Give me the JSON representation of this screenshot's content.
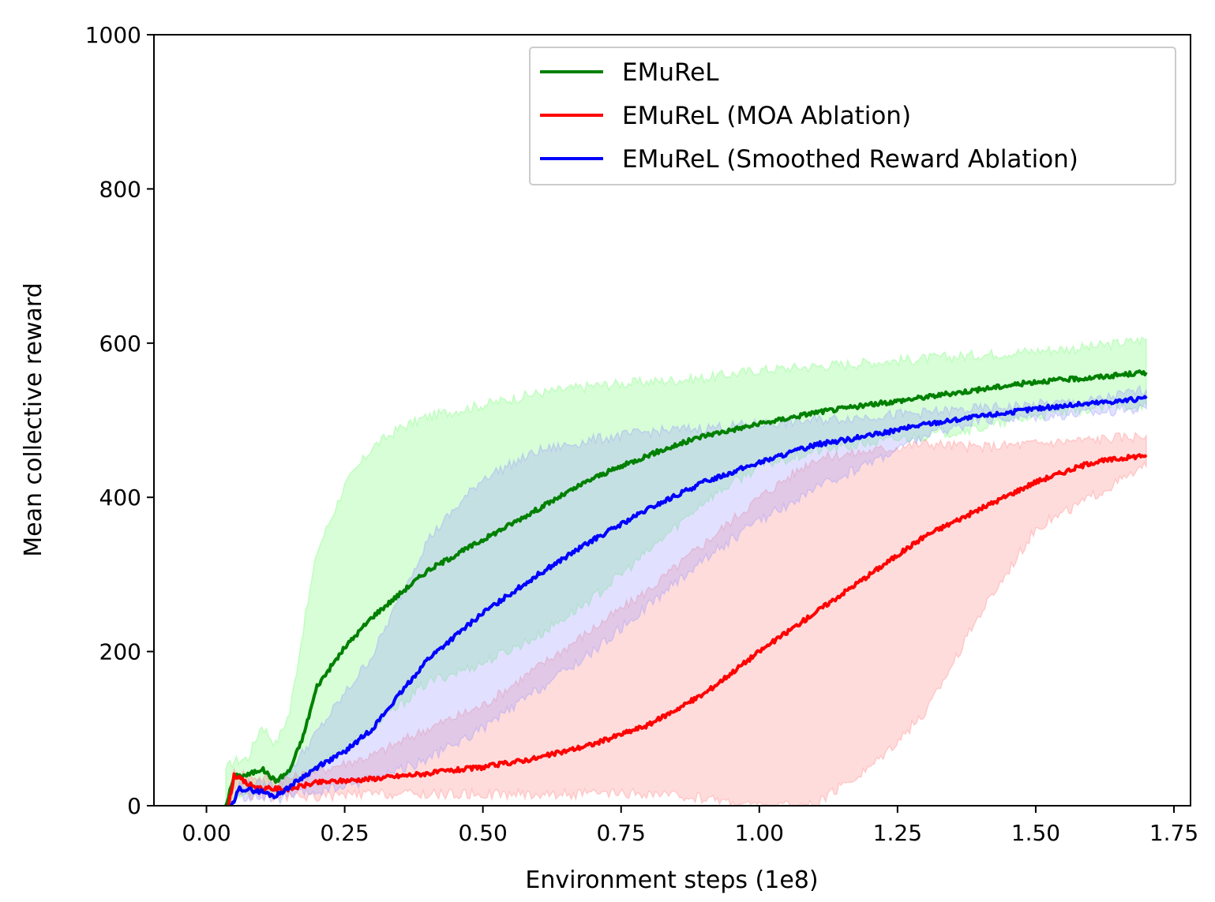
{
  "chart_data": {
    "type": "line",
    "title": "",
    "xlabel": "Environment steps (1e8)",
    "ylabel": "Mean collective reward",
    "xlim": [
      -0.095,
      1.78
    ],
    "ylim": [
      0,
      1000
    ],
    "xticks": [
      0.0,
      0.25,
      0.5,
      0.75,
      1.0,
      1.25,
      1.5,
      1.75
    ],
    "xtick_labels": [
      "0.00",
      "0.25",
      "0.50",
      "0.75",
      "1.00",
      "1.25",
      "1.50",
      "1.75"
    ],
    "yticks": [
      0,
      200,
      400,
      600,
      800,
      1000
    ],
    "ytick_labels": [
      "0",
      "200",
      "400",
      "600",
      "800",
      "1000"
    ],
    "grid": false,
    "legend_position": "top-right",
    "series": [
      {
        "name": "EMuReL",
        "color": "#008000",
        "band_color": "#7CFC7C",
        "x": [
          0.035,
          0.05,
          0.075,
          0.1,
          0.125,
          0.15,
          0.175,
          0.2,
          0.25,
          0.3,
          0.35,
          0.4,
          0.5,
          0.6,
          0.7,
          0.8,
          0.9,
          1.0,
          1.1,
          1.2,
          1.3,
          1.4,
          1.5,
          1.6,
          1.7
        ],
        "y": [
          0,
          38,
          40,
          48,
          32,
          45,
          90,
          155,
          205,
          245,
          275,
          305,
          345,
          385,
          425,
          455,
          480,
          495,
          510,
          520,
          530,
          540,
          550,
          555,
          562
        ],
        "upper": [
          48,
          58,
          62,
          105,
          80,
          120,
          230,
          330,
          415,
          465,
          490,
          505,
          520,
          535,
          545,
          550,
          555,
          565,
          570,
          575,
          580,
          585,
          590,
          595,
          605
        ],
        "lower": [
          0,
          10,
          15,
          25,
          18,
          25,
          35,
          50,
          75,
          100,
          130,
          160,
          185,
          220,
          270,
          330,
          395,
          440,
          460,
          470,
          480,
          490,
          505,
          515,
          520
        ]
      },
      {
        "name": "EMuReL (MOA Ablation)",
        "color": "#FF0000",
        "band_color": "#FF8A8A",
        "x": [
          0.04,
          0.05,
          0.075,
          0.1,
          0.15,
          0.2,
          0.3,
          0.4,
          0.5,
          0.6,
          0.7,
          0.8,
          0.9,
          1.0,
          1.1,
          1.2,
          1.3,
          1.4,
          1.5,
          1.6,
          1.7
        ],
        "y": [
          0,
          40,
          28,
          22,
          22,
          30,
          35,
          42,
          50,
          62,
          80,
          105,
          145,
          200,
          250,
          300,
          350,
          385,
          420,
          445,
          455
        ],
        "upper": [
          0,
          45,
          40,
          35,
          35,
          45,
          65,
          100,
          130,
          180,
          230,
          280,
          340,
          400,
          450,
          460,
          470,
          465,
          470,
          475,
          480
        ],
        "lower": [
          0,
          20,
          15,
          12,
          12,
          12,
          15,
          15,
          15,
          15,
          15,
          15,
          10,
          0,
          0,
          50,
          120,
          250,
          360,
          400,
          440
        ]
      },
      {
        "name": "EMuReL (Smoothed Reward Ablation)",
        "color": "#0000FF",
        "band_color": "#9A9AFF",
        "x": [
          0.045,
          0.06,
          0.1,
          0.125,
          0.15,
          0.2,
          0.25,
          0.3,
          0.4,
          0.5,
          0.6,
          0.7,
          0.8,
          0.9,
          1.0,
          1.1,
          1.2,
          1.3,
          1.4,
          1.5,
          1.6,
          1.7
        ],
        "y": [
          0,
          22,
          18,
          12,
          25,
          50,
          70,
          100,
          190,
          250,
          300,
          345,
          385,
          420,
          445,
          468,
          480,
          495,
          505,
          515,
          522,
          528
        ],
        "upper": [
          0,
          28,
          28,
          28,
          45,
          95,
          145,
          195,
          345,
          425,
          460,
          475,
          485,
          490,
          495,
          500,
          505,
          510,
          515,
          520,
          525,
          540
        ],
        "lower": [
          0,
          12,
          10,
          8,
          12,
          18,
          25,
          35,
          60,
          100,
          150,
          200,
          260,
          320,
          370,
          410,
          445,
          480,
          500,
          505,
          510,
          515
        ]
      }
    ]
  }
}
